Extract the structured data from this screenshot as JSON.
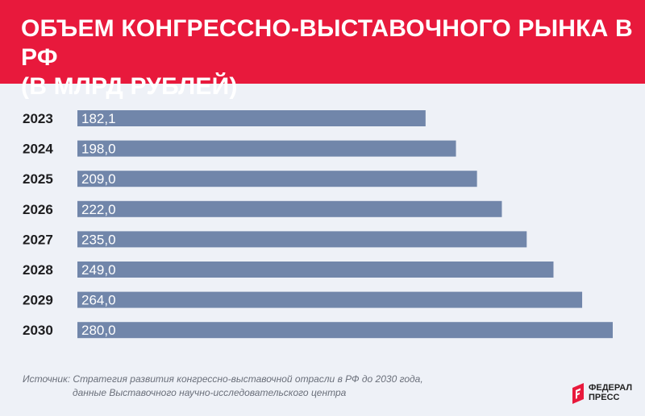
{
  "header": {
    "title_line1": "ОБЪЕМ КОНГРЕССНО-ВЫСТАВОЧНОГО РЫНКА В РФ",
    "title_line2": "(В МЛРД РУБЛЕЙ)",
    "background": "#e8193c"
  },
  "chart_data": {
    "type": "bar",
    "orientation": "horizontal",
    "title": "ОБЪЕМ КОНГРЕССНО-ВЫСТАВОЧНОГО РЫНКА В РФ (В МЛРД РУБЛЕЙ)",
    "categories": [
      "2023",
      "2024",
      "2025",
      "2026",
      "2027",
      "2028",
      "2029",
      "2030"
    ],
    "values": [
      182.1,
      198.0,
      209.0,
      222.0,
      235.0,
      249.0,
      264.0,
      280.0
    ],
    "value_labels": [
      "182,1",
      "198,0",
      "209,0",
      "222,0",
      "235,0",
      "249,0",
      "264,0",
      "280,0"
    ],
    "xlabel": "",
    "ylabel": "",
    "xlim": [
      0,
      280
    ],
    "grid": false,
    "bar_color": "#7186aa"
  },
  "source": {
    "line1": "Источник: Стратегия развития конгрессно-выставочной отрасли в РФ до 2030 года,",
    "line2": "данные Выставочного научно-исследовательского центра"
  },
  "logo": {
    "line1": "ФЕДЕРАЛ",
    "line2": "ПРЕСС",
    "icon": "fp-logo-icon",
    "color": "#e8193c"
  }
}
